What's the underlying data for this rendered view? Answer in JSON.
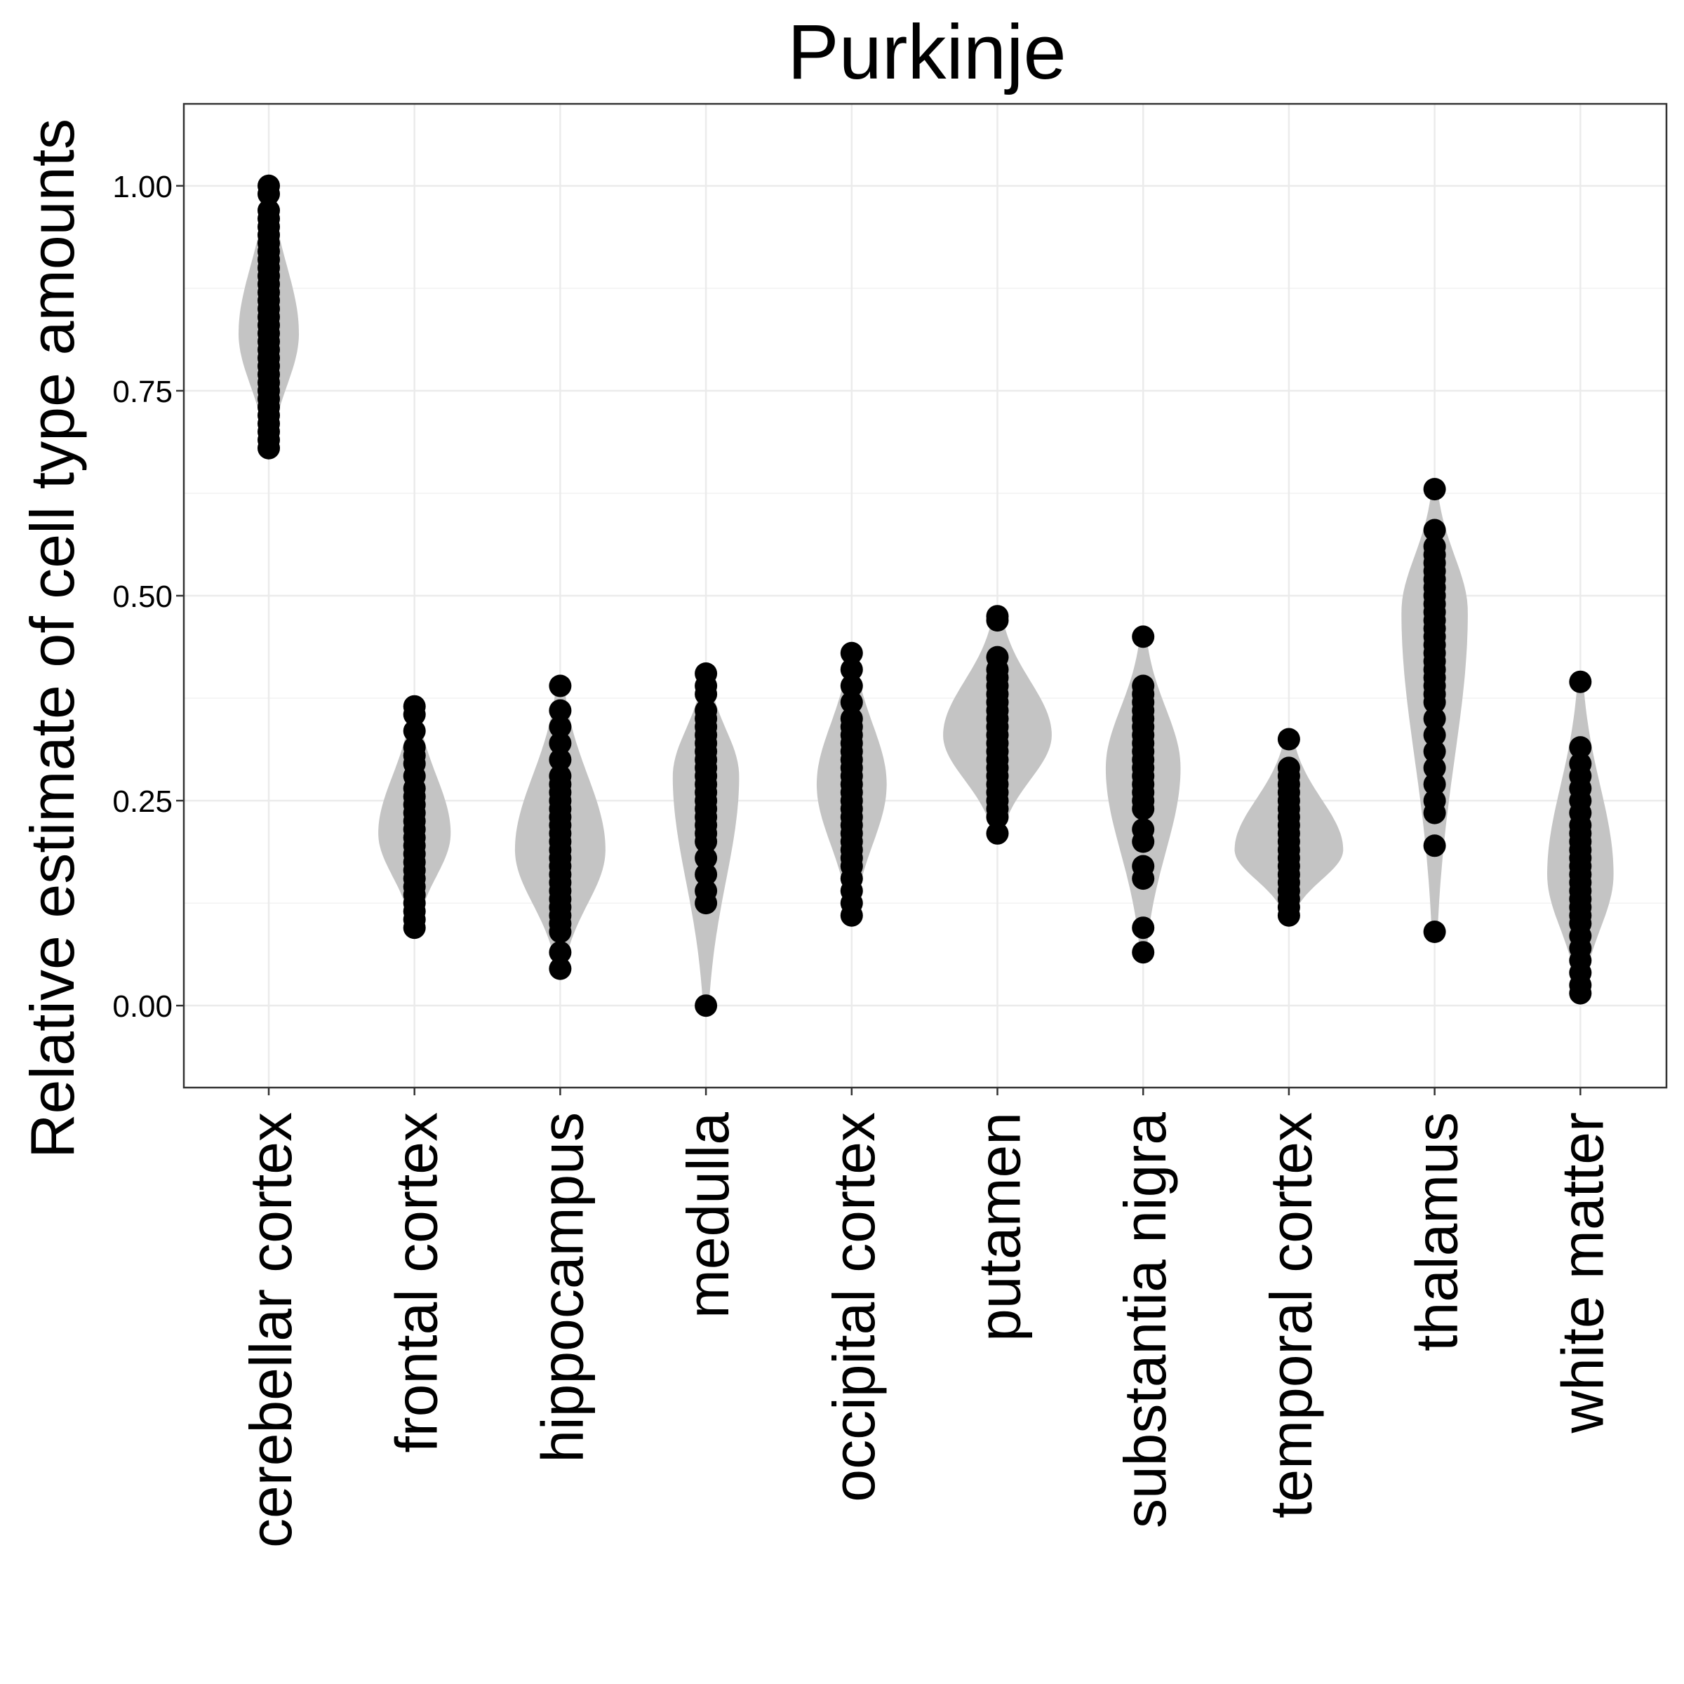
{
  "chart_data": {
    "type": "violin",
    "title": "Purkinje",
    "xlabel": "",
    "ylabel": "Relative estimate of cell type amounts",
    "ylim": [
      -0.1,
      1.1
    ],
    "yticks": [
      "0.00",
      "0.25",
      "0.50",
      "0.75",
      "1.00"
    ],
    "grid": true,
    "colors": {
      "violin": "#c4c4c4",
      "point": "#000000",
      "grid": "#ebebeb",
      "border": "#333333"
    },
    "categories": [
      {
        "label": "cerebellar cortex",
        "min": 0.68,
        "max": 1.0,
        "mode": 0.82,
        "width": 0.5,
        "points": [
          0.68,
          0.69,
          0.7,
          0.71,
          0.72,
          0.73,
          0.74,
          0.75,
          0.76,
          0.77,
          0.78,
          0.79,
          0.8,
          0.81,
          0.82,
          0.83,
          0.84,
          0.85,
          0.86,
          0.87,
          0.88,
          0.89,
          0.9,
          0.91,
          0.92,
          0.93,
          0.94,
          0.95,
          0.96,
          0.97,
          0.99,
          1.0
        ]
      },
      {
        "label": "frontal cortex",
        "min": 0.095,
        "max": 0.365,
        "mode": 0.21,
        "width": 0.6,
        "points": [
          0.095,
          0.105,
          0.115,
          0.125,
          0.135,
          0.145,
          0.155,
          0.165,
          0.175,
          0.185,
          0.195,
          0.205,
          0.215,
          0.225,
          0.235,
          0.245,
          0.255,
          0.265,
          0.28,
          0.295,
          0.305,
          0.315,
          0.335,
          0.355,
          0.365
        ]
      },
      {
        "label": "hippocampus",
        "min": 0.045,
        "max": 0.39,
        "mode": 0.19,
        "width": 0.75,
        "points": [
          0.045,
          0.065,
          0.09,
          0.1,
          0.11,
          0.12,
          0.13,
          0.14,
          0.15,
          0.16,
          0.17,
          0.18,
          0.19,
          0.2,
          0.21,
          0.22,
          0.23,
          0.24,
          0.25,
          0.26,
          0.27,
          0.28,
          0.3,
          0.32,
          0.34,
          0.36,
          0.39
        ]
      },
      {
        "label": "medulla",
        "min": 0.0,
        "max": 0.405,
        "mode": 0.28,
        "width": 0.55,
        "points": [
          0.0,
          0.125,
          0.14,
          0.16,
          0.18,
          0.2,
          0.21,
          0.22,
          0.23,
          0.24,
          0.25,
          0.26,
          0.27,
          0.28,
          0.29,
          0.3,
          0.31,
          0.32,
          0.33,
          0.34,
          0.35,
          0.36,
          0.38,
          0.39,
          0.405
        ]
      },
      {
        "label": "occipital cortex",
        "min": 0.11,
        "max": 0.43,
        "mode": 0.27,
        "width": 0.58,
        "points": [
          0.11,
          0.125,
          0.14,
          0.155,
          0.17,
          0.18,
          0.19,
          0.2,
          0.21,
          0.22,
          0.23,
          0.24,
          0.25,
          0.26,
          0.27,
          0.28,
          0.29,
          0.3,
          0.31,
          0.32,
          0.33,
          0.34,
          0.35,
          0.37,
          0.39,
          0.41,
          0.43
        ]
      },
      {
        "label": "putamen",
        "min": 0.21,
        "max": 0.475,
        "mode": 0.33,
        "width": 0.9,
        "points": [
          0.21,
          0.23,
          0.24,
          0.25,
          0.26,
          0.27,
          0.28,
          0.29,
          0.3,
          0.31,
          0.32,
          0.33,
          0.34,
          0.35,
          0.36,
          0.37,
          0.38,
          0.39,
          0.4,
          0.41,
          0.425,
          0.47,
          0.475
        ]
      },
      {
        "label": "substantia nigra",
        "min": 0.065,
        "max": 0.45,
        "mode": 0.29,
        "width": 0.62,
        "points": [
          0.065,
          0.095,
          0.155,
          0.17,
          0.2,
          0.215,
          0.24,
          0.25,
          0.26,
          0.27,
          0.28,
          0.29,
          0.3,
          0.31,
          0.32,
          0.33,
          0.34,
          0.35,
          0.36,
          0.37,
          0.38,
          0.39,
          0.45
        ]
      },
      {
        "label": "temporal cortex",
        "min": 0.11,
        "max": 0.325,
        "mode": 0.19,
        "width": 0.9,
        "points": [
          0.11,
          0.12,
          0.13,
          0.14,
          0.15,
          0.16,
          0.17,
          0.18,
          0.19,
          0.2,
          0.21,
          0.22,
          0.23,
          0.24,
          0.25,
          0.26,
          0.27,
          0.28,
          0.29,
          0.325
        ]
      },
      {
        "label": "thalamus",
        "min": 0.09,
        "max": 0.63,
        "mode": 0.48,
        "width": 0.55,
        "points": [
          0.09,
          0.195,
          0.235,
          0.25,
          0.27,
          0.29,
          0.31,
          0.33,
          0.35,
          0.37,
          0.38,
          0.39,
          0.4,
          0.41,
          0.42,
          0.43,
          0.44,
          0.45,
          0.46,
          0.47,
          0.48,
          0.49,
          0.5,
          0.51,
          0.52,
          0.53,
          0.54,
          0.55,
          0.56,
          0.58,
          0.63
        ]
      },
      {
        "label": "white matter",
        "min": 0.015,
        "max": 0.395,
        "mode": 0.16,
        "width": 0.55,
        "points": [
          0.015,
          0.025,
          0.04,
          0.055,
          0.07,
          0.085,
          0.1,
          0.11,
          0.12,
          0.13,
          0.14,
          0.15,
          0.16,
          0.17,
          0.18,
          0.19,
          0.2,
          0.21,
          0.22,
          0.235,
          0.25,
          0.265,
          0.28,
          0.295,
          0.315,
          0.395
        ]
      }
    ]
  }
}
